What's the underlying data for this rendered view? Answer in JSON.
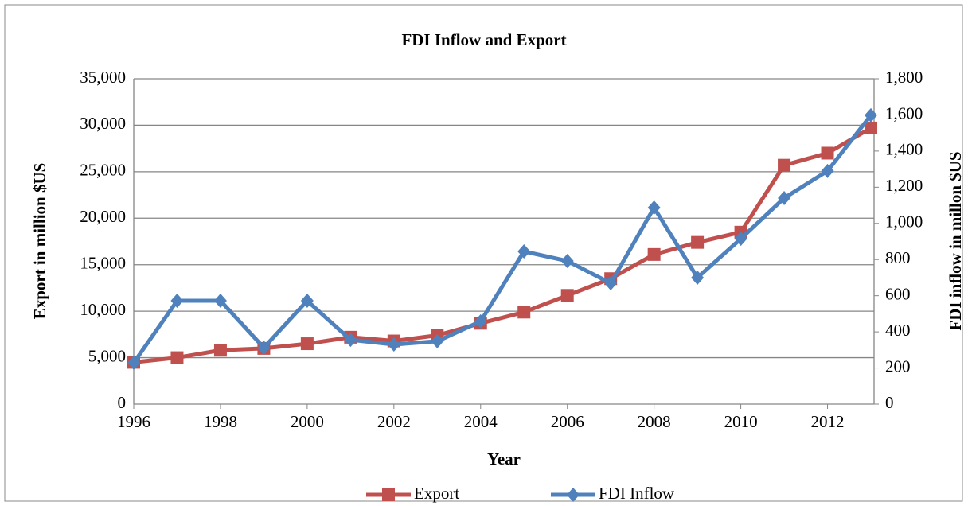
{
  "chart_data": {
    "type": "line",
    "title": "FDI Inflow and Export",
    "x_label": "Year",
    "y_label": "Export in million $US",
    "y2_label": "FDI inflow in millon $US",
    "x": [
      1996,
      1997,
      1998,
      1999,
      2000,
      2001,
      2002,
      2003,
      2004,
      2005,
      2006,
      2007,
      2008,
      2009,
      2010,
      2011,
      2012,
      2013
    ],
    "xlim": [
      1996,
      2013
    ],
    "xticks": [
      1996,
      1998,
      2000,
      2002,
      2004,
      2006,
      2008,
      2010,
      2012
    ],
    "ylim": [
      0,
      35000
    ],
    "yticks": [
      0,
      {
        "value": 5000,
        "label": "5,000"
      },
      {
        "value": 10000,
        "label": "10,000"
      },
      {
        "value": 15000,
        "label": "15,000"
      },
      {
        "value": 20000,
        "label": "20,000"
      },
      {
        "value": 25000,
        "label": "25,000"
      },
      {
        "value": 30000,
        "label": "30,000"
      },
      {
        "value": 35000,
        "label": "35,000"
      }
    ],
    "y2lim": [
      0,
      1800
    ],
    "y2ticks": [
      0,
      200,
      400,
      600,
      800,
      {
        "value": 1000,
        "label": "1,000"
      },
      {
        "value": 1200,
        "label": "1,200"
      },
      {
        "value": 1400,
        "label": "1,400"
      },
      {
        "value": 1600,
        "label": "1,600"
      },
      {
        "value": 1800,
        "label": "1,800"
      }
    ],
    "grid": true,
    "legend": "bottom",
    "series": [
      {
        "name": "Export",
        "color": "#c0504d",
        "marker": "square",
        "values": [
          4500,
          5000,
          5800,
          6000,
          6500,
          7200,
          6800,
          7400,
          8700,
          9900,
          11700,
          13500,
          16100,
          17400,
          18500,
          25700,
          27000,
          29700
        ]
      },
      {
        "name": "FDI Inflow",
        "color": "#4f81bd",
        "marker": "diamond",
        "axis": "y2",
        "values": [
          229,
          572,
          572,
          312,
          572,
          356,
          330,
          348,
          458,
          845,
          792,
          669,
          1087,
          700,
          915,
          1140,
          1290,
          1598
        ]
      }
    ]
  }
}
